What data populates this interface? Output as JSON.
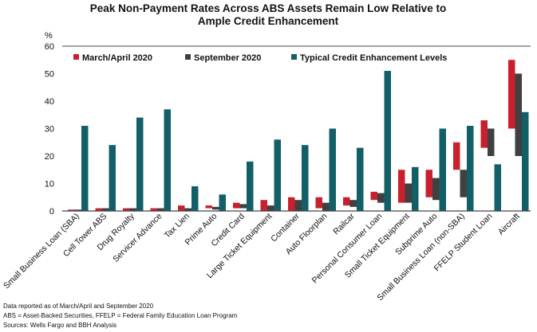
{
  "chart_data": {
    "type": "bar",
    "title": "Peak Non-Payment Rates Across ABS Assets Remain Low Relative to Ample Credit Enhancement",
    "title_lines": [
      "Peak Non-Payment Rates Across ABS Assets Remain Low Relative to",
      "Ample Credit Enhancement"
    ],
    "ylabel": "%",
    "ylim": [
      0,
      60
    ],
    "yticks": [
      0,
      10,
      20,
      30,
      40,
      50,
      60
    ],
    "grid": false,
    "legend_position": "top-left",
    "categories": [
      "Small Business Loan (SBA)",
      "Cell Tower ABS",
      "Drug Royalty",
      "Servicer Advance",
      "Tax Lien",
      "Prime Auto",
      "Credit Card",
      "Large Ticket Equipment",
      "Container",
      "Auto Floorplan",
      "Railcar",
      "Personal Consumer Loan",
      "Small Ticket Equipment",
      "Subprime Auto",
      "Small Business Loan (non-SBA)",
      "FFELP Student Loan",
      "Aircraft"
    ],
    "series": [
      {
        "name": "March/April 2020",
        "color": "#c8202f",
        "range": true,
        "values": [
          [
            0,
            0.5
          ],
          [
            0,
            1
          ],
          [
            0,
            1
          ],
          [
            0,
            1
          ],
          [
            0,
            2
          ],
          [
            1,
            2
          ],
          [
            1,
            3
          ],
          [
            0,
            4
          ],
          [
            0,
            5
          ],
          [
            1,
            5
          ],
          [
            2,
            5
          ],
          [
            4,
            7
          ],
          [
            3,
            15
          ],
          [
            5,
            15
          ],
          [
            15,
            25
          ],
          [
            23,
            33
          ],
          [
            30,
            55
          ]
        ]
      },
      {
        "name": "September 2020",
        "color": "#404040",
        "range": true,
        "values": [
          [
            0,
            0.5
          ],
          [
            0,
            1
          ],
          [
            0,
            1
          ],
          [
            0,
            1
          ],
          [
            0,
            1
          ],
          [
            0.5,
            1.5
          ],
          [
            1,
            2.5
          ],
          [
            0,
            2
          ],
          [
            0,
            4
          ],
          [
            0,
            3
          ],
          [
            1.5,
            4
          ],
          [
            3,
            6.5
          ],
          [
            3,
            10
          ],
          [
            4,
            12
          ],
          [
            5,
            15
          ],
          [
            20,
            30
          ],
          [
            20,
            50
          ]
        ]
      },
      {
        "name": "Typical Credit Enhancement Levels",
        "color": "#135f67",
        "range": false,
        "values": [
          31,
          24,
          34,
          37,
          9,
          6,
          18,
          26,
          24,
          30,
          23,
          51,
          16,
          30,
          31,
          17,
          36
        ]
      }
    ]
  },
  "footnotes": [
    "Data reported as of March/April and September  2020",
    "ABS = Asset-Backed Securities, FFELP = Federal Family Education Loan Program",
    "Sources: Wells Fargo and BBH Analysis"
  ]
}
